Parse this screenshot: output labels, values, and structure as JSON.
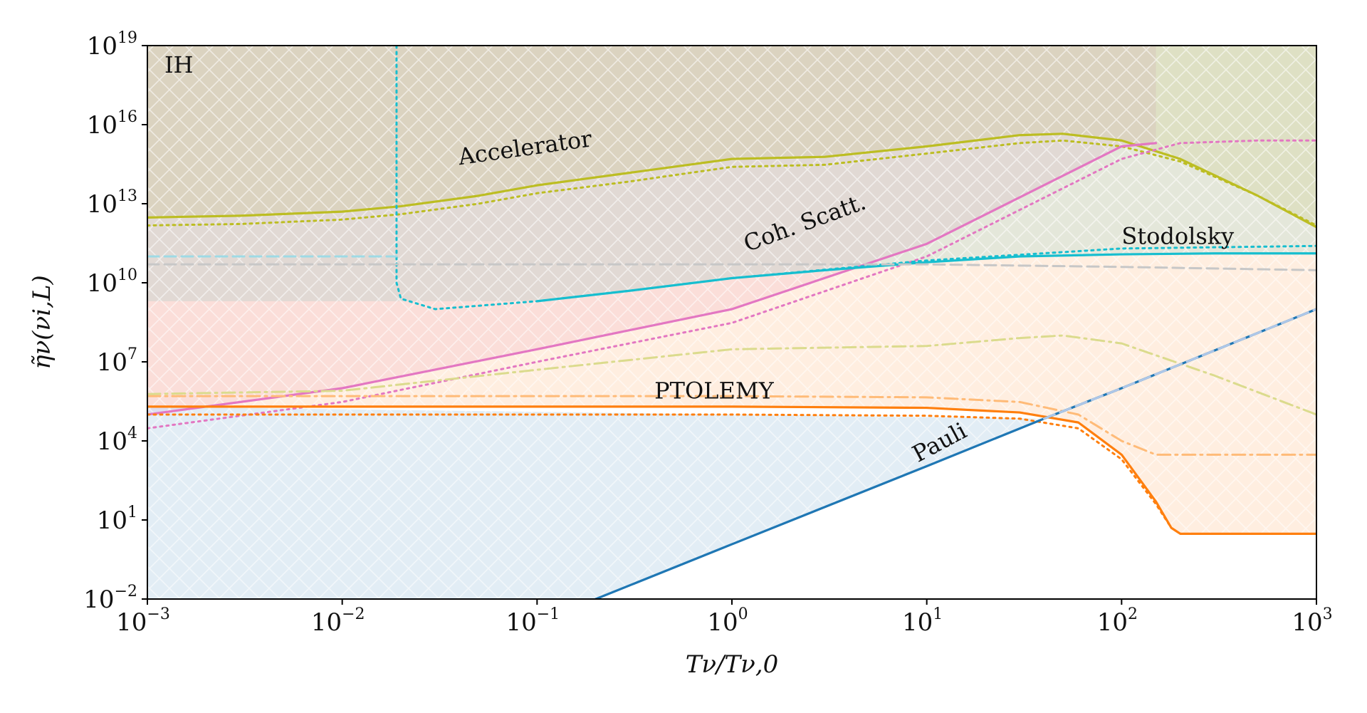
{
  "chart_data": {
    "type": "line",
    "title": "",
    "corner_label": "IH",
    "xlabel": "Tν/Tν,0",
    "ylabel": "η̃ν(νi,L)",
    "xscale": "log",
    "yscale": "log",
    "xlim": [
      0.001,
      1000
    ],
    "ylim": [
      0.01,
      1e+19
    ],
    "x_ticks": [
      {
        "base": "10",
        "exp": "−3",
        "value": 0.001
      },
      {
        "base": "10",
        "exp": "−2",
        "value": 0.01
      },
      {
        "base": "10",
        "exp": "−1",
        "value": 0.1
      },
      {
        "base": "10",
        "exp": "0",
        "value": 1
      },
      {
        "base": "10",
        "exp": "1",
        "value": 10
      },
      {
        "base": "10",
        "exp": "2",
        "value": 100
      },
      {
        "base": "10",
        "exp": "3",
        "value": 1000
      }
    ],
    "y_ticks": [
      {
        "base": "10",
        "exp": "−2",
        "value": 0.01
      },
      {
        "base": "10",
        "exp": "1",
        "value": 10
      },
      {
        "base": "10",
        "exp": "4",
        "value": 10000
      },
      {
        "base": "10",
        "exp": "7",
        "value": 10000000.0
      },
      {
        "base": "10",
        "exp": "10",
        "value": 10000000000.0
      },
      {
        "base": "10",
        "exp": "13",
        "value": 10000000000000.0
      },
      {
        "base": "10",
        "exp": "16",
        "value": 1e+16
      },
      {
        "base": "10",
        "exp": "19",
        "value": 1e+19
      }
    ],
    "series": [
      {
        "name": "Accelerator",
        "label": "Accelerator",
        "color": "#bcbd22",
        "style": "solid",
        "fill": "#bcbd22",
        "label_at": [
          0.04,
          300000000000000.0
        ],
        "label_angle": -8,
        "x": [
          0.001,
          0.003,
          0.01,
          0.02,
          0.05,
          0.1,
          0.3,
          1,
          3,
          10,
          30,
          50,
          100,
          200,
          500,
          1000
        ],
        "y": [
          3000000000000.0,
          3500000000000.0,
          5000000000000.0,
          8000000000000.0,
          20000000000000.0,
          50000000000000.0,
          150000000000000.0,
          500000000000000.0,
          600000000000000.0,
          1500000000000000.0,
          4000000000000000.0,
          4500000000000000.0,
          2500000000000000.0,
          500000000000000.0,
          20000000000000.0,
          1300000000000.0
        ]
      },
      {
        "name": "Accelerator (dotted)",
        "color": "#bcbd22",
        "style": "dotted",
        "fill": null,
        "x": [
          0.001,
          0.003,
          0.01,
          0.02,
          0.05,
          0.1,
          0.3,
          1,
          3,
          10,
          30,
          50,
          100,
          200,
          500,
          1000
        ],
        "y": [
          1500000000000.0,
          1700000000000.0,
          2500000000000.0,
          4000000000000.0,
          10000000000000.0,
          25000000000000.0,
          70000000000000.0,
          250000000000000.0,
          300000000000000.0,
          800000000000000.0,
          2000000000000000.0,
          2500000000000000.0,
          1500000000000000.0,
          400000000000000.0,
          20000000000000.0,
          1500000000000.0
        ]
      },
      {
        "name": "Coh. Scatt.",
        "label": "Coh. Scatt.",
        "color": "#e377c2",
        "style": "solid",
        "fill": "#e377c2",
        "label_at": [
          1.2,
          150000000000.0
        ],
        "label_angle": -20,
        "x": [
          0.001,
          0.01,
          0.1,
          1,
          10,
          100,
          150
        ],
        "y": [
          100000.0,
          1000000.0,
          30000000.0,
          1000000000.0,
          300000000000.0,
          1500000000000000.0,
          2000000000000000.0
        ]
      },
      {
        "name": "Coh. Scatt. (dotted)",
        "color": "#e377c2",
        "style": "dotted",
        "fill": null,
        "x": [
          0.001,
          0.01,
          0.1,
          1,
          10,
          100,
          200,
          500,
          1000
        ],
        "y": [
          30000.0,
          300000.0,
          10000000.0,
          300000000.0,
          100000000000.0,
          500000000000000.0,
          2000000000000000.0,
          2500000000000000.0,
          2500000000000000.0
        ]
      },
      {
        "name": "Stodolsky",
        "label": "Stodolsky",
        "color": "#17becf",
        "style": "solid",
        "fill": "#17becf",
        "label_at": [
          100,
          300000000000.0
        ],
        "label_angle": 0,
        "x": [
          0.1,
          0.3,
          1,
          3,
          10,
          30,
          100,
          300,
          1000
        ],
        "y": [
          2000000000.0,
          5000000000.0,
          15000000000.0,
          30000000000.0,
          60000000000.0,
          100000000000.0,
          120000000000.0,
          130000000000.0,
          130000000000.0
        ]
      },
      {
        "name": "Stodolsky (dotted)",
        "color": "#17becf",
        "style": "dotted",
        "fill": null,
        "x": [
          0.019,
          0.019,
          0.02,
          0.03,
          0.1,
          0.3,
          1,
          10,
          100,
          1000
        ],
        "y": [
          1e+19,
          10000000000.0,
          2500000000.0,
          1000000000.0,
          2000000000.0,
          5000000000.0,
          15000000000.0,
          70000000000.0,
          200000000000.0,
          250000000000.0
        ]
      },
      {
        "name": "PTOLEMY",
        "label": "PTOLEMY",
        "color": "#ff7f0e",
        "style": "solid",
        "fill": "#ff7f0e",
        "label_at": [
          0.4,
          400000.0
        ],
        "label_angle": 0,
        "x": [
          0.001,
          0.01,
          0.1,
          1,
          10,
          30,
          60,
          100,
          150,
          180,
          200,
          500,
          1000
        ],
        "y": [
          200000.0,
          200000.0,
          200000.0,
          200000.0,
          180000.0,
          120000.0,
          50000.0,
          3000,
          50,
          5,
          3,
          3,
          3
        ]
      },
      {
        "name": "PTOLEMY (dotted)",
        "color": "#ff7f0e",
        "style": "dotted",
        "fill": null,
        "x": [
          0.001,
          0.01,
          0.1,
          1,
          10,
          30,
          60,
          100,
          150,
          180
        ],
        "y": [
          100000.0,
          100000.0,
          100000.0,
          100000.0,
          90000.0,
          70000.0,
          30000.0,
          2000,
          40,
          5
        ]
      },
      {
        "name": "PTOLEMY (dash-dot)",
        "color": "#ffbb78",
        "style": "dashdot",
        "fill": null,
        "x": [
          0.001,
          0.01,
          0.1,
          1,
          10,
          30,
          60,
          100,
          150,
          200,
          500,
          1000
        ],
        "y": [
          500000.0,
          500000.0,
          500000.0,
          500000.0,
          450000.0,
          300000.0,
          100000.0,
          10000.0,
          3000,
          3000,
          3000,
          3000
        ]
      },
      {
        "name": "Accelerator (dash-dot)",
        "color": "#dbdb8d",
        "style": "dashdot",
        "fill": null,
        "x": [
          0.001,
          0.01,
          0.1,
          1,
          10,
          30,
          50,
          100,
          300,
          1000
        ],
        "y": [
          600000.0,
          800000.0,
          5000000.0,
          30000000.0,
          40000000.0,
          80000000.0,
          100000000.0,
          50000000.0,
          3000000.0,
          100000.0
        ]
      },
      {
        "name": "Pauli",
        "label": "Pauli",
        "color": "#1f77b4",
        "style": "solid",
        "fill": "#1f77b4",
        "label_at": [
          9,
          1500
        ],
        "label_angle": -28,
        "x": [
          0.2,
          1,
          10,
          40,
          100,
          1000
        ],
        "y": [
          0.01,
          1.2,
          1100,
          70000.0,
          1000000.0,
          1000000000.0
        ]
      },
      {
        "name": "Pauli (dashed)",
        "color": "#aec7e8",
        "style": "dashed",
        "fill": null,
        "x": [
          40,
          100,
          1000
        ],
        "y": [
          70000.0,
          1000000.0,
          1000000000.0
        ]
      },
      {
        "name": "Stodolsky (dashed)",
        "color": "#9edae5",
        "style": "dashed",
        "fill": null,
        "x": [
          0.001,
          0.019
        ],
        "y": [
          100000000000.0,
          100000000000.0
        ]
      },
      {
        "name": "Gray (dashed)",
        "color": "#c7c7c7",
        "style": "dashed",
        "fill": null,
        "x": [
          0.001,
          0.01,
          0.1,
          1,
          10,
          100,
          1000
        ],
        "y": [
          50000000000.0,
          50000000000.0,
          50000000000.0,
          50000000000.0,
          50000000000.0,
          40000000000.0,
          30000000000.0
        ]
      }
    ]
  }
}
